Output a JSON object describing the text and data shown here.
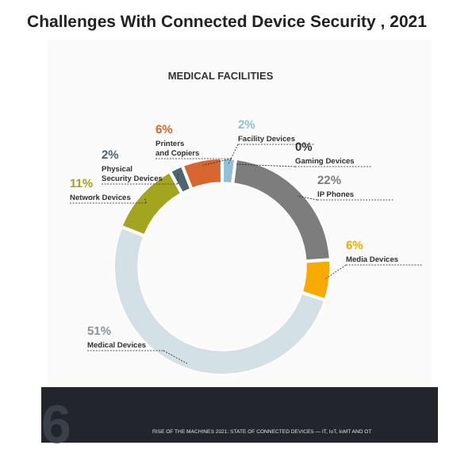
{
  "chart_data": {
    "type": "donut",
    "title": "Challenges With Connected Device Security , 2021",
    "subtitle": "MEDICAL FACILITIES",
    "categories": [
      "Facility Devices",
      "Gaming Devices",
      "IP Phones",
      "Media Devices",
      "Medical Devices",
      "Network Devices",
      "Physical Security Devices",
      "Printers and Copiers"
    ],
    "values": [
      2,
      0,
      22,
      6,
      51,
      11,
      2,
      6
    ],
    "colors": [
      "#8fc0d6",
      "#333333",
      "#7d7d7d",
      "#f7ab00",
      "#d3e1e7",
      "#a3a51f",
      "#4e6672",
      "#d7672f"
    ],
    "value_labels": [
      "2%",
      "0%",
      "22%",
      "6%",
      "51%",
      "11%",
      "2%",
      "6%"
    ],
    "annotations": [
      "6",
      "RISE OF THE MACHINES 2021: STATE OF CONNECTED DEVICES — IT, IoT, IoMT AND OT"
    ]
  }
}
